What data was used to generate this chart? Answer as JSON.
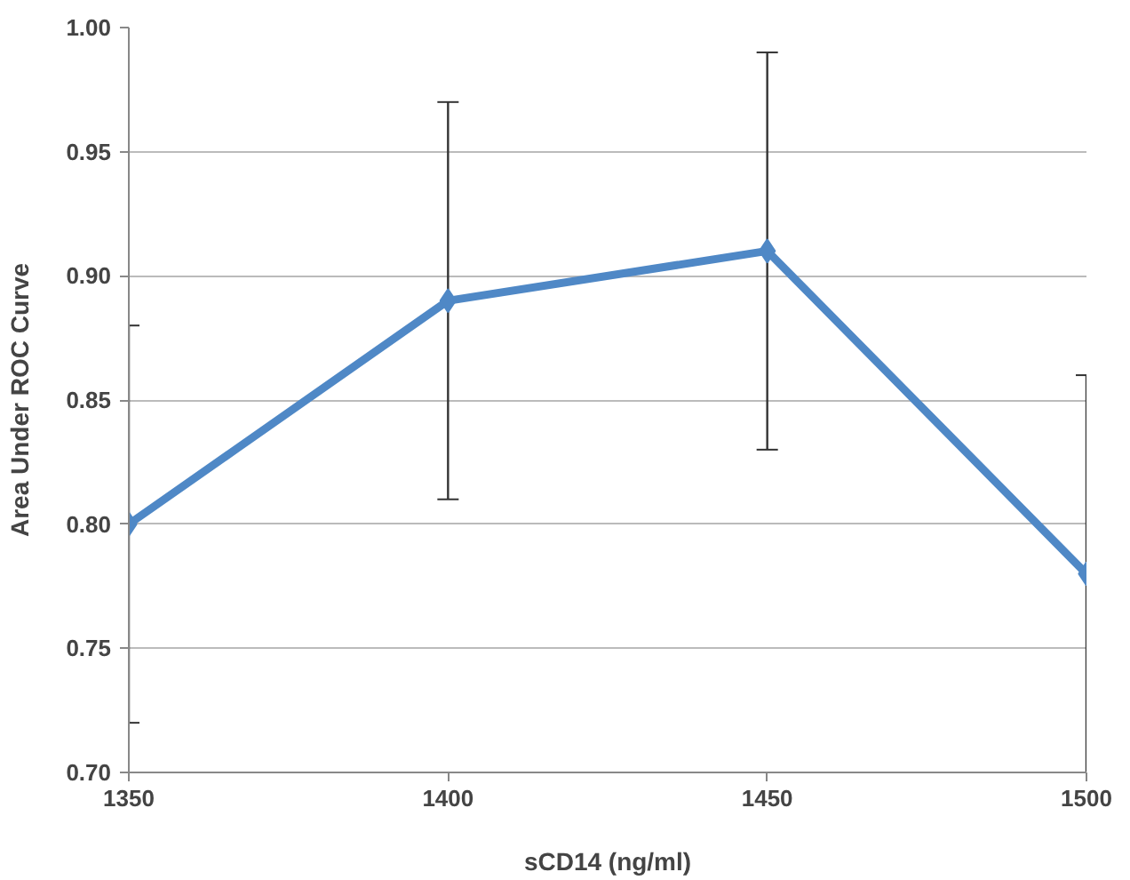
{
  "chart_data": {
    "type": "line",
    "xlabel": "sCD14 (ng/ml)",
    "ylabel": "Area Under ROC Curve",
    "x": [
      1350,
      1400,
      1450,
      1500
    ],
    "series": [
      {
        "color": "#4f88c6",
        "values": [
          0.8,
          0.89,
          0.91,
          0.78
        ],
        "errors": [
          0.08,
          0.08,
          0.08,
          0.08
        ]
      }
    ],
    "xlim": [
      1350,
      1500
    ],
    "xticks": [
      1350,
      1400,
      1450,
      1500
    ],
    "ylim": [
      0.7,
      1.0
    ],
    "yticks": [
      {
        "value": 0.7,
        "label": "0.70"
      },
      {
        "value": 0.75,
        "label": "0.75"
      },
      {
        "value": 0.8,
        "label": "0.80"
      },
      {
        "value": 0.85,
        "label": "0.85"
      },
      {
        "value": 0.9,
        "label": "0.90"
      },
      {
        "value": 0.95,
        "label": "0.95"
      },
      {
        "value": 1.0,
        "label": "1.00"
      }
    ],
    "grid": "y",
    "marker": "diamond",
    "line_style": "solid"
  }
}
